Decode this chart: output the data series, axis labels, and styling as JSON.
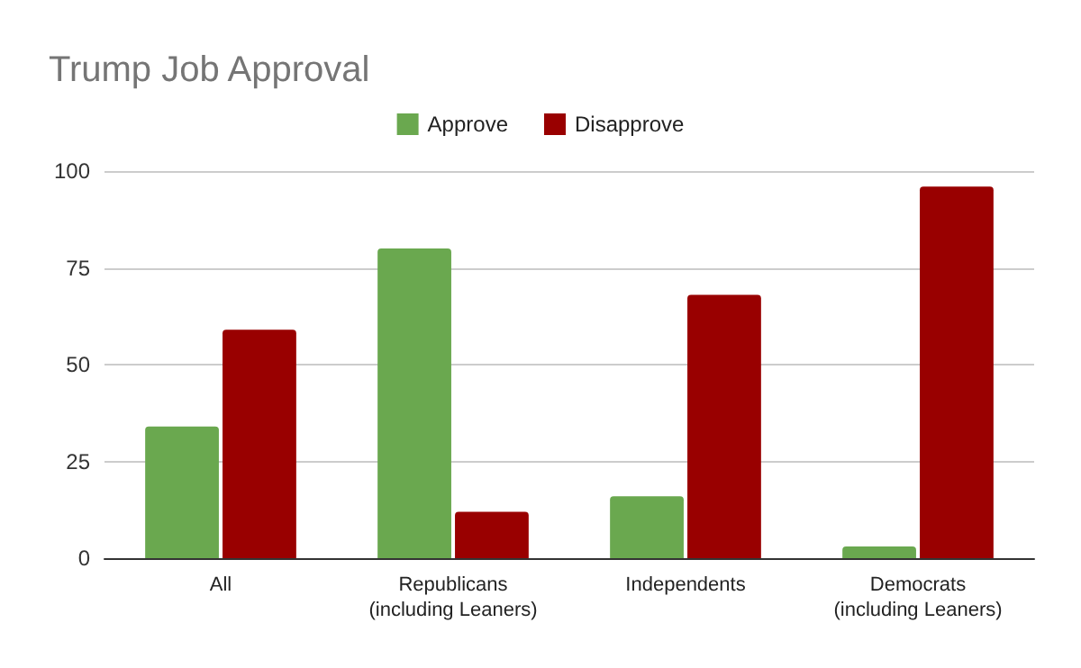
{
  "chart_data": {
    "type": "bar",
    "title": "Trump Job Approval",
    "categories": [
      "All",
      "Republicans\n(including Leaners)",
      "Independents",
      "Democrats\n(including Leaners)"
    ],
    "series": [
      {
        "name": "Approve",
        "color": "#6aa84f",
        "values": [
          34,
          80,
          16,
          3
        ]
      },
      {
        "name": "Disapprove",
        "color": "#990000",
        "values": [
          59,
          12,
          68,
          96
        ]
      }
    ],
    "ylim": [
      0,
      100
    ],
    "yticks": [
      0,
      25,
      50,
      75,
      100
    ],
    "grid": "y",
    "legend": "top"
  }
}
